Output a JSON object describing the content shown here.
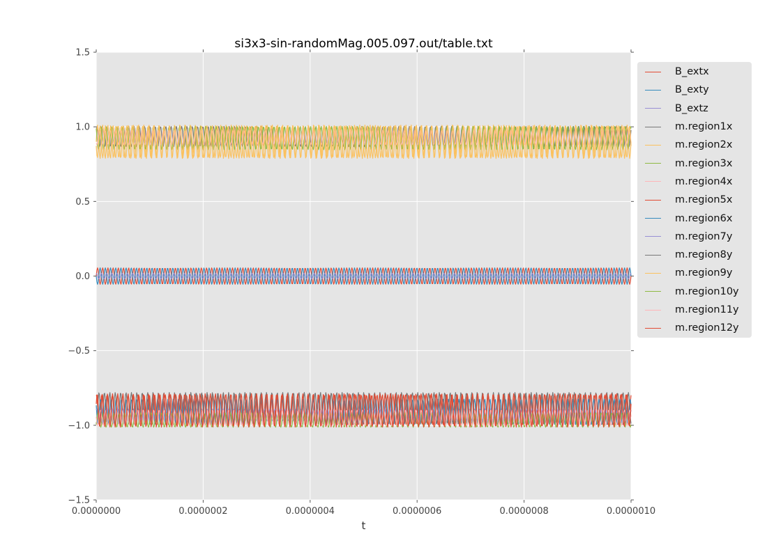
{
  "chart_data": {
    "type": "line",
    "title": "si3x3-sin-randomMag.005.097.out/table.txt",
    "xlabel": "t",
    "ylabel": "",
    "xlim": [
      0,
      1e-06
    ],
    "ylim": [
      -1.5,
      1.5
    ],
    "grid": true,
    "plot_bg": "#e5e5e5",
    "grid_color": "#ffffff",
    "tick_color": "#555555",
    "tick_label_color": "#444444",
    "legend_position": "outside-right",
    "legend_bg": "#e5e5e5",
    "x_tick_values": [
      0,
      2e-07,
      4e-07,
      6e-07,
      8e-07,
      1e-06
    ],
    "x_tick_labels": [
      "0.0000000",
      "0.0000002",
      "0.0000004",
      "0.0000006",
      "0.0000008",
      "0.0000010"
    ],
    "y_tick_values": [
      1.5,
      1.0,
      0.5,
      0.0,
      -0.5,
      -1.0,
      -1.5
    ],
    "y_tick_labels": [
      "1.5",
      "1.0",
      "0.5",
      "0.0",
      "−0.5",
      "−1.0",
      "−1.5"
    ],
    "waveform": "sine",
    "series": [
      {
        "name": "B_extx",
        "color": "#e24a33",
        "center": 0,
        "amplitude": 0.055,
        "cycles": 103,
        "phase": 0.0
      },
      {
        "name": "B_exty",
        "color": "#348abd",
        "center": 0,
        "amplitude": 0.055,
        "cycles": 103,
        "phase": 3.14
      },
      {
        "name": "B_extz",
        "color": "#988ed5",
        "center": 0,
        "amplitude": 0.018,
        "cycles": 103,
        "phase": 1.57
      },
      {
        "name": "m.region1x",
        "color": "#777777",
        "center": 0.935,
        "amplitude": 0.068,
        "cycles": 101,
        "phase": 0.7
      },
      {
        "name": "m.region2x",
        "color": "#fbc15e",
        "center": 0.9,
        "amplitude": 0.112,
        "cycles": 104,
        "phase": 0.0
      },
      {
        "name": "m.region3x",
        "color": "#8eba42",
        "center": 0.925,
        "amplitude": 0.078,
        "cycles": 102,
        "phase": 2.2
      },
      {
        "name": "m.region4x",
        "color": "#ffb5b8",
        "center": 0.93,
        "amplitude": 0.05,
        "cycles": 100,
        "phase": 4.1
      },
      {
        "name": "m.region5x",
        "color": "#e24a33",
        "center": -0.895,
        "amplitude": 0.1,
        "cycles": 101,
        "phase": 1.3
      },
      {
        "name": "m.region6x",
        "color": "#348abd",
        "center": -0.91,
        "amplitude": 0.085,
        "cycles": 103,
        "phase": 2.6
      },
      {
        "name": "m.region7y",
        "color": "#988ed5",
        "center": -0.93,
        "amplitude": 0.04,
        "cycles": 102,
        "phase": 0.9
      },
      {
        "name": "m.region8y",
        "color": "#777777",
        "center": -0.885,
        "amplitude": 0.105,
        "cycles": 99,
        "phase": 4.6
      },
      {
        "name": "m.region9y",
        "color": "#fbc15e",
        "center": 0.9,
        "amplitude": 0.108,
        "cycles": 100,
        "phase": 3.4
      },
      {
        "name": "m.region10y",
        "color": "#8eba42",
        "center": -0.965,
        "amplitude": 0.048,
        "cycles": 101,
        "phase": 5.6
      },
      {
        "name": "m.region11y",
        "color": "#ffb5b8",
        "center": -0.95,
        "amplitude": 0.052,
        "cycles": 100,
        "phase": 3.0
      },
      {
        "name": "m.region12y",
        "color": "#e24a33",
        "center": -0.9,
        "amplitude": 0.112,
        "cycles": 104,
        "phase": 0.4
      }
    ]
  }
}
